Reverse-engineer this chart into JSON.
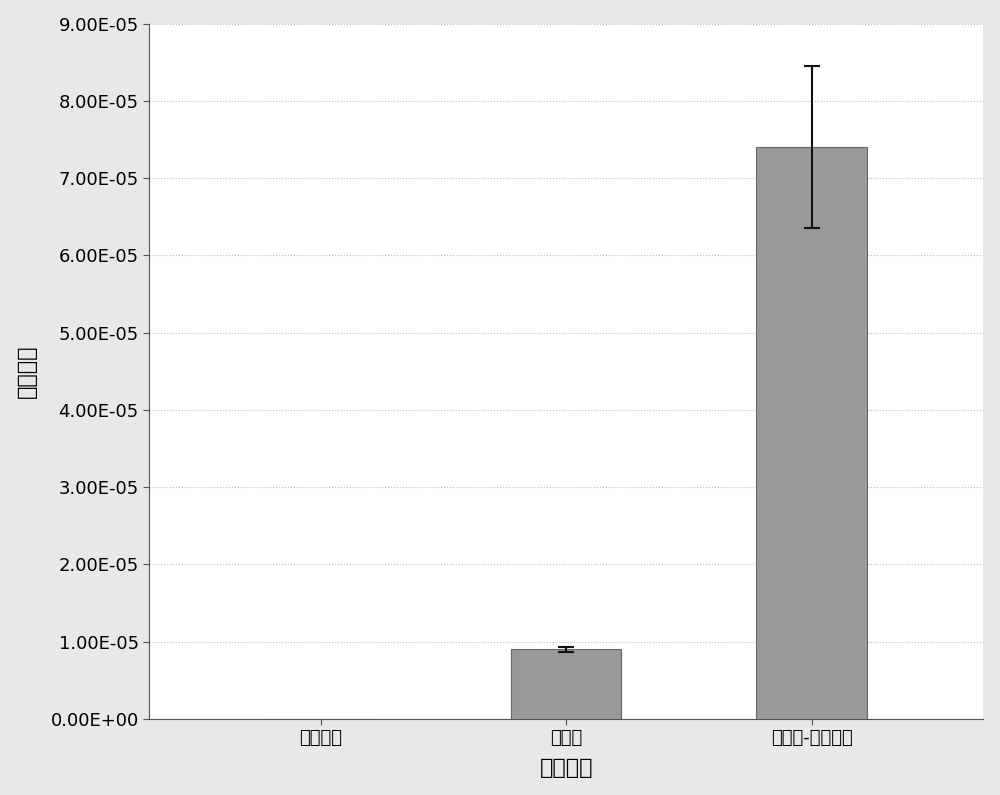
{
  "categories": [
    "仅透性化",
    "仅超声",
    "透性化-超声联合"
  ],
  "values": [
    0.0,
    9e-06,
    7.4e-05
  ],
  "errors": [
    0.0,
    3.5e-07,
    1.05e-05
  ],
  "bar_color": "#999999",
  "bar_edgecolor": "#666666",
  "outer_background": "#e8e8e8",
  "plot_background": "#ffffff",
  "ylabel": "转化效率",
  "xlabel": "转化技术",
  "ylim": [
    0,
    9e-05
  ],
  "yticks": [
    0.0,
    1e-05,
    2e-05,
    3e-05,
    4e-05,
    5e-05,
    6e-05,
    7e-05,
    8e-05,
    9e-05
  ],
  "ytick_labels": [
    "0.00E+00",
    "1.00E-05",
    "2.00E-05",
    "3.00E-05",
    "4.00E-05",
    "5.00E-05",
    "6.00E-05",
    "7.00E-05",
    "8.00E-05",
    "9.00E-05"
  ],
  "axis_fontsize": 16,
  "tick_fontsize": 13,
  "bar_width": 0.45,
  "error_capsize": 6,
  "error_color": "#111111",
  "grid_color": "#bbbbbb",
  "figsize": [
    10.0,
    7.95
  ]
}
